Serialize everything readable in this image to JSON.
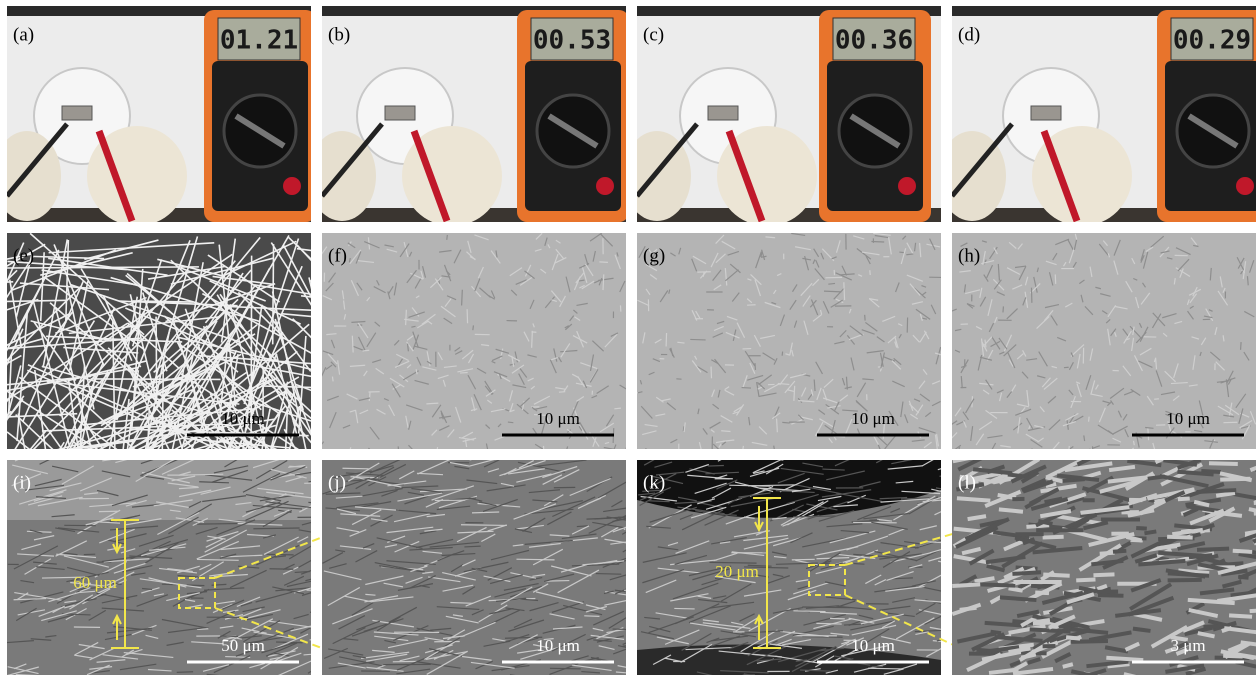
{
  "panels": [
    {
      "label": "(a)",
      "reading": "01.21"
    },
    {
      "label": "(b)",
      "reading": "00.53"
    },
    {
      "label": "(c)",
      "reading": "00.36"
    },
    {
      "label": "(d)",
      "reading": "00.29"
    },
    {
      "label": "(e)",
      "scale_bar": "10 μm"
    },
    {
      "label": "(f)",
      "scale_bar": "10 μm"
    },
    {
      "label": "(g)",
      "scale_bar": "10 μm"
    },
    {
      "label": "(h)",
      "scale_bar": "10 μm"
    },
    {
      "label": "(i)",
      "scale_bar": "50 μm",
      "thickness": "60 μm"
    },
    {
      "label": "(j)",
      "scale_bar": "10 μm"
    },
    {
      "label": "(k)",
      "scale_bar": "10 μm",
      "thickness": "20 μm"
    },
    {
      "label": "(l)",
      "scale_bar": "3 μm"
    }
  ]
}
